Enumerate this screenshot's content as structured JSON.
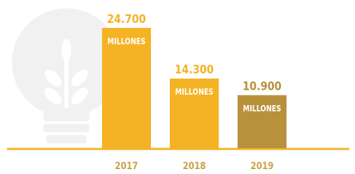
{
  "chart_data": {
    "type": "bar",
    "categories": [
      "2017",
      "2018",
      "2019"
    ],
    "values": [
      24700,
      14300,
      10900
    ],
    "value_labels": [
      "24.700",
      "14.300",
      "10.900"
    ],
    "unit_label": "MILLONES",
    "colors": [
      "#f4b324",
      "#f4b324",
      "#b8913c"
    ],
    "ylim": [
      0,
      30000
    ]
  }
}
